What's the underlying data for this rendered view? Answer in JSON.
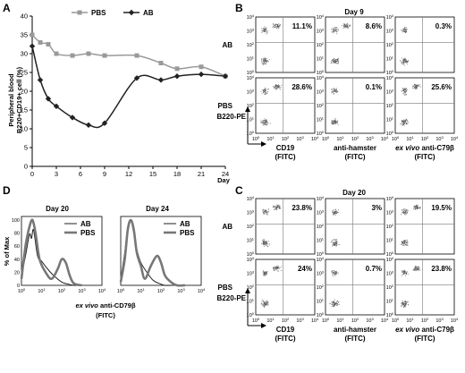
{
  "panel_a": {
    "letter": "A",
    "ylabel_line1": "Peripheral blood",
    "ylabel_line2": "B220+CD19+ cell (%)",
    "xlabel": "Day"
  },
  "panel_b": {
    "letter": "B",
    "title": "Day 9",
    "rows": [
      "AB",
      "PBS"
    ],
    "y_axis_label": "B220-PE",
    "columns": [
      {
        "line1": "CD19",
        "line2": "(FITC)",
        "italic_prefix": ""
      },
      {
        "line1": "anti-hamster",
        "line2": "(FITC)",
        "italic_prefix": ""
      },
      {
        "line1": "anti-C79β",
        "line2": "(FITC)",
        "italic_prefix": "ex vivo "
      }
    ],
    "percentages": [
      [
        "11.1%",
        "8.6%",
        "0.3%"
      ],
      [
        "28.6%",
        "0.1%",
        "25.6%"
      ]
    ]
  },
  "panel_c": {
    "letter": "C",
    "title": "Day 20",
    "rows": [
      "AB",
      "PBS"
    ],
    "y_axis_label": "B220-PE",
    "columns": [
      {
        "line1": "CD19",
        "line2": "(FITC)",
        "italic_prefix": ""
      },
      {
        "line1": "anti-hamster",
        "line2": "(FITC)",
        "italic_prefix": ""
      },
      {
        "line1": "anti-C79β",
        "line2": "(FITC)",
        "italic_prefix": "ex vivo "
      }
    ],
    "percentages": [
      [
        "23.8%",
        "3%",
        "19.5%"
      ],
      [
        "24%",
        "0.7%",
        "23.8%"
      ]
    ]
  },
  "panel_d": {
    "letter": "D",
    "titles": [
      "Day 20",
      "Day 24"
    ],
    "ylabel": "% of Max",
    "xlabel_italic": "ex vivo",
    "xlabel_rest": " anti-CD79β",
    "xlabel_line2": "(FITC)"
  },
  "flow_ticks": [
    "10",
    "10",
    "10",
    "10",
    "10"
  ],
  "flow_tick_exp": [
    "0",
    "1",
    "2",
    "3",
    "4"
  ],
  "hist_y_ticks": [
    "0",
    "20",
    "40",
    "60",
    "80",
    "100"
  ],
  "chart_data": [
    {
      "type": "line",
      "xlabel": "Day",
      "ylabel": "Peripheral blood B220+CD19+ cell (%)",
      "x_ticks": [
        0,
        3,
        6,
        9,
        12,
        15,
        18,
        21,
        24
      ],
      "y_ticks": [
        0,
        5,
        10,
        15,
        20,
        25,
        30,
        35,
        40
      ],
      "xlim": [
        0,
        24
      ],
      "ylim": [
        0,
        40
      ],
      "legend": "top",
      "series": [
        {
          "name": "PBS",
          "marker": "square",
          "color": "#999999",
          "x": [
            0,
            1,
            2,
            3,
            5,
            7,
            9,
            13,
            16,
            18,
            21,
            24
          ],
          "y": [
            35,
            33,
            32.5,
            30,
            29.5,
            30,
            29.5,
            29.5,
            27.5,
            26,
            26.5,
            24
          ]
        },
        {
          "name": "AB",
          "marker": "diamond",
          "color": "#222222",
          "x": [
            0,
            1,
            2,
            3,
            5,
            7,
            9,
            13,
            16,
            18,
            21,
            24
          ],
          "y": [
            32,
            23,
            18,
            16,
            13,
            11,
            11.5,
            23.5,
            23,
            24,
            24.5,
            24
          ]
        }
      ]
    },
    {
      "type": "line",
      "title": "Day 20",
      "xlim": [
        "10^0",
        "10^4"
      ],
      "ylim": [
        0,
        100
      ],
      "legend": "top-right",
      "series": [
        {
          "name": "AB",
          "line": "thin",
          "x": [
            0,
            0.2,
            0.4,
            0.5,
            0.6,
            0.8,
            1.0,
            1.3,
            1.6,
            2.0,
            2.3,
            2.6,
            3.0
          ],
          "y": [
            15,
            45,
            78,
            72,
            85,
            45,
            37,
            25,
            15,
            5,
            2,
            0,
            0
          ]
        },
        {
          "name": "PBS",
          "line": "thick",
          "x": [
            0,
            0.2,
            0.4,
            0.55,
            0.7,
            0.9,
            1.2,
            1.5,
            1.8,
            2.0,
            2.2,
            2.4,
            2.6,
            3.0
          ],
          "y": [
            10,
            60,
            90,
            100,
            80,
            40,
            20,
            10,
            25,
            40,
            35,
            15,
            3,
            0
          ]
        }
      ]
    },
    {
      "type": "line",
      "title": "Day 24",
      "xlim": [
        "10^0",
        "10^4"
      ],
      "ylim": [
        0,
        100
      ],
      "legend": "top-right",
      "series": [
        {
          "name": "AB",
          "line": "thin",
          "x": [
            0,
            0.2,
            0.35,
            0.5,
            0.65,
            0.8,
            1.0,
            1.3,
            1.6,
            1.9,
            2.2,
            2.5,
            3.0
          ],
          "y": [
            10,
            50,
            90,
            100,
            80,
            55,
            35,
            20,
            8,
            3,
            0,
            0,
            0
          ]
        },
        {
          "name": "PBS",
          "line": "thick",
          "x": [
            0,
            0.2,
            0.35,
            0.5,
            0.65,
            0.8,
            1.0,
            1.2,
            1.5,
            1.8,
            2.0,
            2.2,
            2.5,
            2.8,
            3.2
          ],
          "y": [
            5,
            40,
            85,
            100,
            85,
            50,
            30,
            10,
            30,
            45,
            35,
            15,
            5,
            0,
            0
          ]
        }
      ]
    }
  ]
}
